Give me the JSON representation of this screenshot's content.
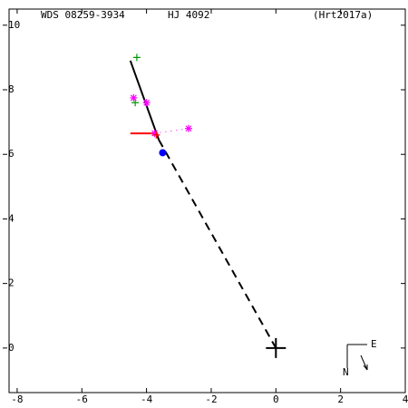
{
  "chart_data": {
    "type": "scatter",
    "title": "WDS 08259-3934",
    "subtitle": "HJ 4092",
    "annotation": "(Hrt2017a)",
    "compass": {
      "east": "E",
      "north": "N"
    },
    "xlim": [
      -8.25,
      4
    ],
    "xticks": [
      -8,
      -6,
      -4,
      -2,
      0,
      2,
      4
    ],
    "ylim": [
      -1.38,
      10.5
    ],
    "yticks": [
      0,
      2,
      4,
      6,
      8,
      10
    ],
    "series": [
      {
        "style": "solid",
        "color": "#000000",
        "x": [
          -4.5,
          -3.62
        ],
        "values": [
          8.9,
          6.45
        ]
      },
      {
        "style": "dashed",
        "color": "#000000",
        "x": [
          -3.62,
          0
        ],
        "values": [
          6.45,
          0
        ]
      },
      {
        "style": "solid",
        "color": "#ff0000",
        "x": [
          -4.5,
          -3.7
        ],
        "values": [
          6.65,
          6.65
        ]
      },
      {
        "style": "dotted",
        "color": "#ff00ff",
        "x": [
          -3.75,
          -2.7
        ],
        "values": [
          6.65,
          6.8
        ]
      },
      {
        "marker": "plus",
        "color": "#009900",
        "x": [
          -4.3,
          -4.35
        ],
        "values": [
          9.0,
          7.6
        ]
      },
      {
        "marker": "asterisk",
        "color": "#ff00ff",
        "x": [
          -4.4,
          -4.0,
          -2.7,
          -3.75
        ],
        "values": [
          7.75,
          7.6,
          6.8,
          6.65
        ]
      },
      {
        "marker": "plus",
        "color": "#ff0000",
        "x": [
          -3.7
        ],
        "values": [
          6.6
        ]
      },
      {
        "marker": "circle",
        "color": "#0000ff",
        "x": [
          -3.5
        ],
        "values": [
          6.05
        ]
      },
      {
        "marker": "bigplus",
        "color": "#000000",
        "x": [
          0
        ],
        "values": [
          0
        ]
      }
    ]
  }
}
